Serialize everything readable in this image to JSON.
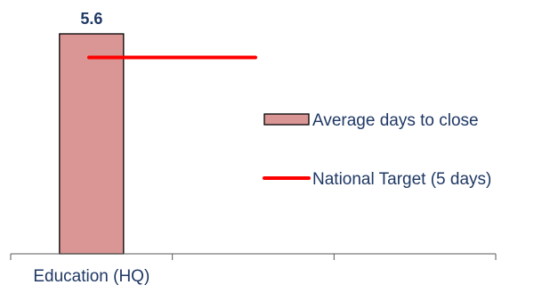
{
  "chart_data": {
    "type": "bar",
    "categories": [
      "Education (HQ)",
      "",
      ""
    ],
    "series": [
      {
        "name": "Average days to close",
        "values": [
          5.6,
          null,
          null
        ],
        "color": "#d99694",
        "stroke": "#000000"
      }
    ],
    "target": {
      "name": "National Target (5 days)",
      "value": 5,
      "color": "#ff0000"
    },
    "data_labels": [
      "5.6"
    ],
    "title": "",
    "xlabel": "",
    "ylabel": "",
    "ylim": [
      0,
      5.6
    ],
    "grid": false,
    "legend_position": "right"
  }
}
